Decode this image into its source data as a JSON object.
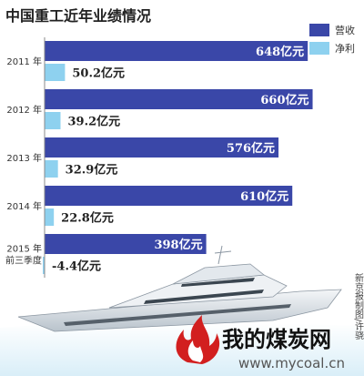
{
  "chart_data": {
    "type": "bar",
    "orientation": "horizontal",
    "title": "中国重工近年业绩情况",
    "categories": [
      "2011 年",
      "2012 年",
      "2013 年",
      "2014 年",
      "2015 年\n前三季度"
    ],
    "series": [
      {
        "name": "营收",
        "color": "#3a47a8",
        "values": [
          648,
          660,
          576,
          610,
          398
        ],
        "labels": [
          "648亿元",
          "660亿元",
          "576亿元",
          "610亿元",
          "398亿元"
        ]
      },
      {
        "name": "净利",
        "color": "#8ed1ef",
        "values": [
          50.2,
          39.2,
          32.9,
          22.8,
          -4.4
        ],
        "labels": [
          "50.2亿元",
          "39.2亿元",
          "32.9亿元",
          "22.8亿元",
          "-4.4亿元"
        ]
      }
    ],
    "xlim": [
      0,
      670
    ],
    "grid": false,
    "legend": "top-right"
  },
  "credit": "新京报制图/许骁",
  "watermark": {
    "name": "我的煤炭网",
    "url": "www.mycoal.cn"
  }
}
